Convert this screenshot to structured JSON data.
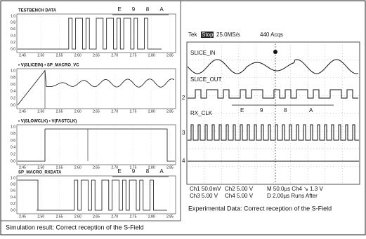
{
  "simulation": {
    "plots": [
      {
        "title": "TESTBENCH DATA",
        "labels": [
          "E",
          "9",
          "8",
          "A"
        ]
      },
      {
        "title": "• V(SLICEIN) • SP_MACRO_VC"
      },
      {
        "title": "• V(SLOWCLK) • V(FASTCLK)"
      },
      {
        "title": "SP_MACRO_RXDATA",
        "labels": [
          "E",
          "9",
          "8",
          "A"
        ]
      }
    ],
    "yticks": [
      "1.0",
      "0.8",
      "0.6",
      "0.4",
      "0.2",
      "0.0"
    ],
    "xticks": [
      "2.45",
      "2.50",
      "2.55",
      "2.60",
      "2.65",
      "2.70",
      "2.75",
      "2.80",
      "2.85"
    ],
    "caption": "Simulation result: Correct reception of the S-Field"
  },
  "scope": {
    "header": {
      "brand": "Tek",
      "state": "Stop",
      "rate": "25.0MS/s",
      "acqs": "440 Acqs"
    },
    "traces": [
      "SLICE_IN",
      "SLICE_OUT",
      "RX_CLK"
    ],
    "labels": [
      "E",
      "9",
      "8",
      "A"
    ],
    "channels": [
      "2",
      "3",
      "4"
    ],
    "footer": [
      "Ch1   50.0mV",
      "Ch2   5.00 V",
      "M 50.0µs  Ch4 ↘  1.3 V",
      "Ch3   5.00 V",
      "Ch4   5.00 V",
      "D 2.00µs   Runs After"
    ],
    "caption": "Experimental Data: Correct reception of the S-Field"
  }
}
